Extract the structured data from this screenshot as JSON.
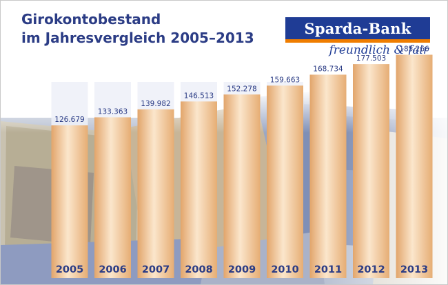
{
  "header": {
    "title_line1": "Girokontobestand",
    "title_line2": "im Jahresvergleich 2005–2013"
  },
  "logo": {
    "name": "Sparda-Bank",
    "slogan": "freundlich & fair",
    "colors": {
      "blue": "#1f3c95",
      "orange": "#ef7d00"
    }
  },
  "background": {
    "description_icon": "euro-banknotes-image"
  },
  "chart_data": {
    "type": "bar",
    "title": "Girokontobestand im Jahresvergleich 2005–2013",
    "categories": [
      "2005",
      "2006",
      "2007",
      "2008",
      "2009",
      "2010",
      "2011",
      "2012",
      "2013"
    ],
    "values": [
      126679,
      133363,
      139982,
      146513,
      152278,
      159663,
      168734,
      177503,
      185266
    ],
    "value_labels": [
      "126.679",
      "133.363",
      "139.982",
      "146.513",
      "152.278",
      "159.663",
      "168.734",
      "177.503",
      "185.266"
    ],
    "xlabel": "",
    "ylabel": "",
    "ylim": [
      0,
      200000
    ],
    "grid": false,
    "legend": "none",
    "colors": {
      "bar": "#efc08f",
      "bar_highlight": "#fbe6cc",
      "column_track": "#eef0f8",
      "label": "#2b3c85"
    }
  }
}
